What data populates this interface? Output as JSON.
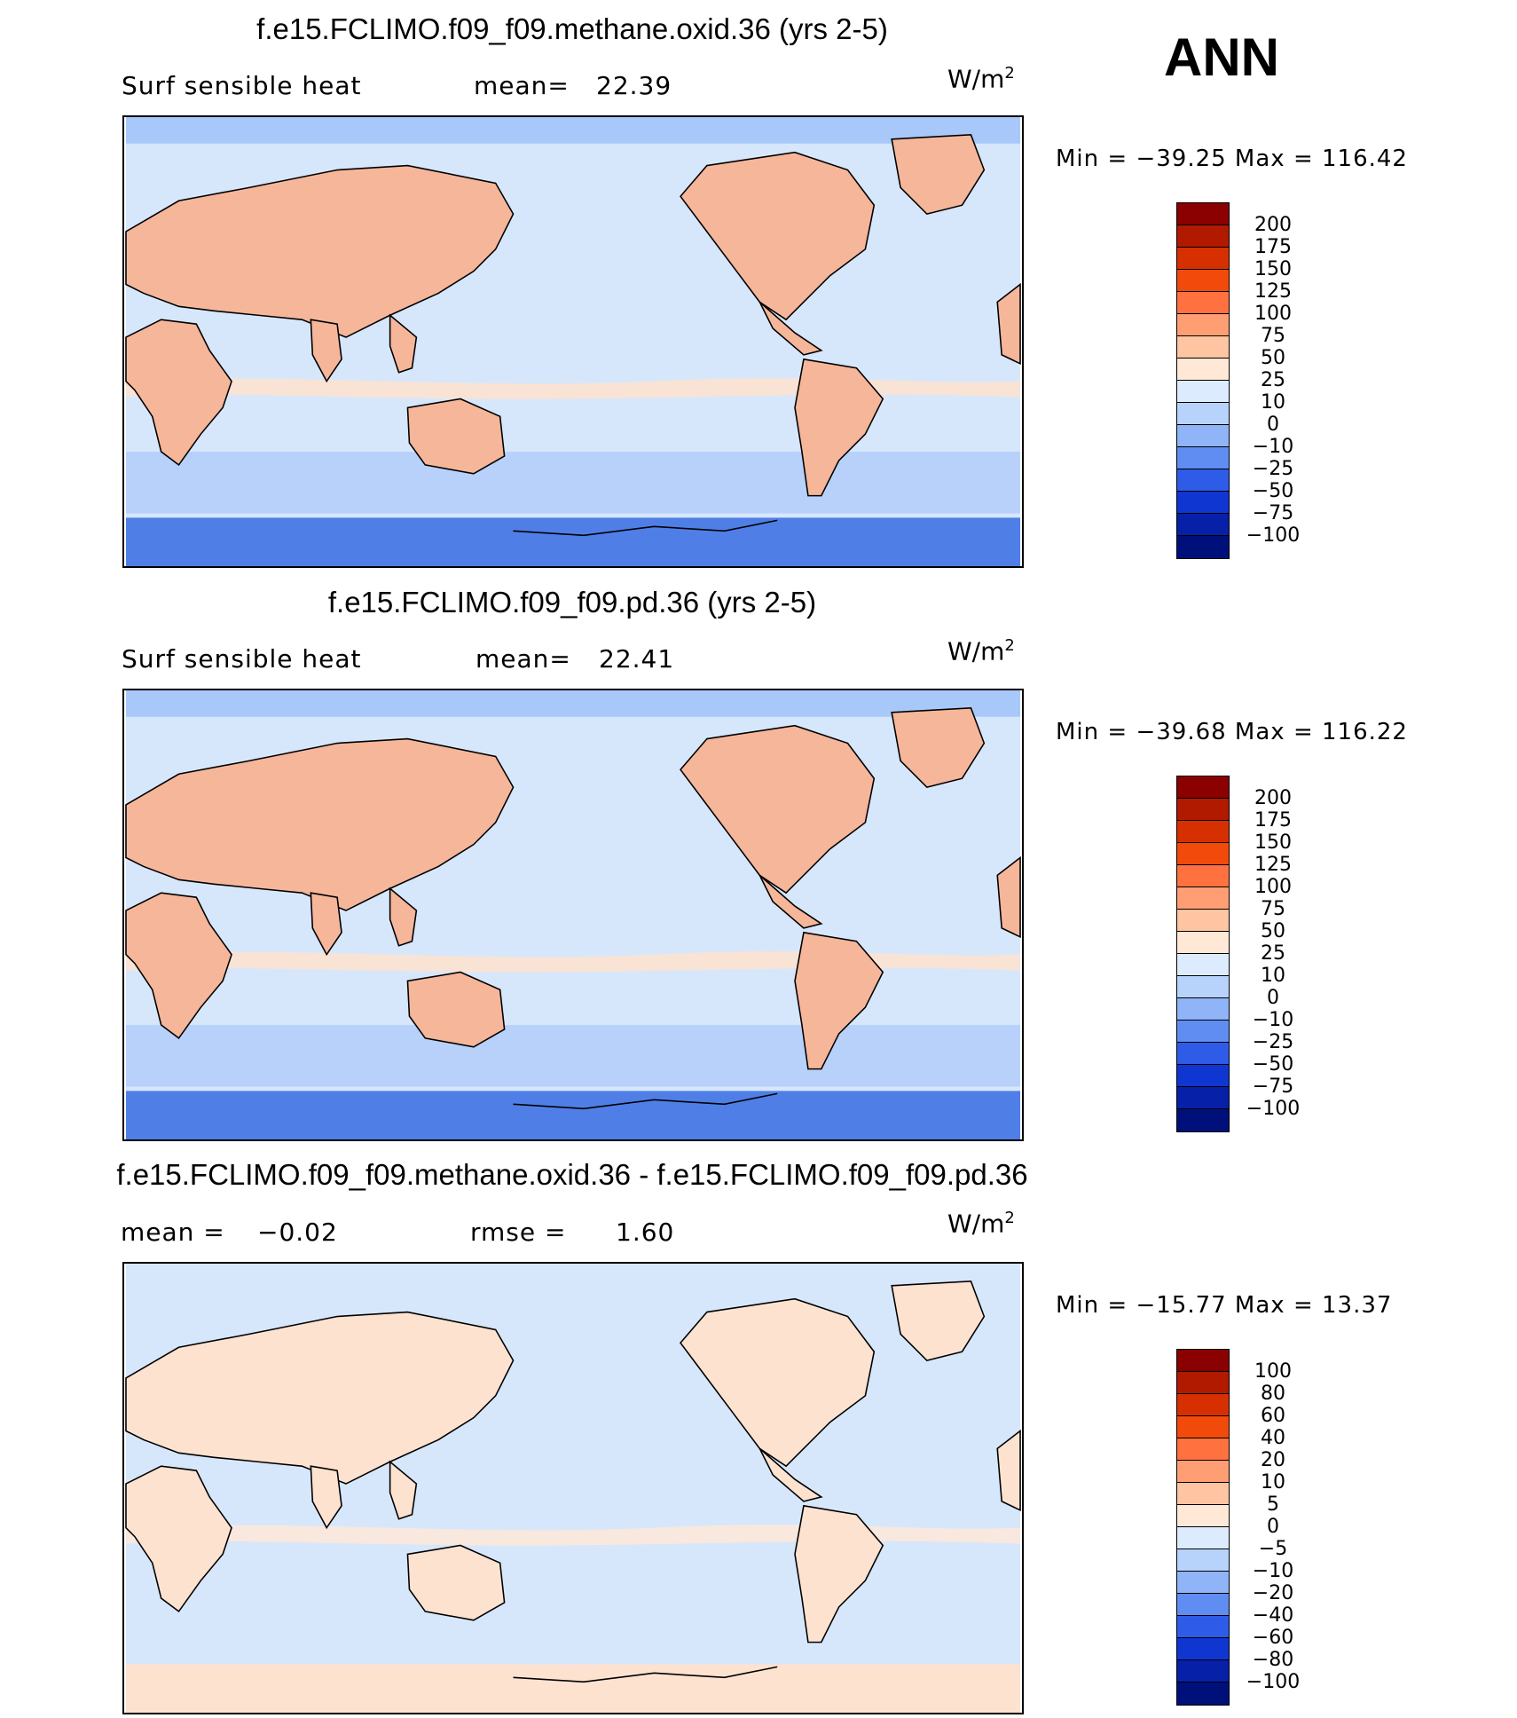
{
  "season": "ANN",
  "panels": [
    {
      "title": "f.e15.FCLIMO.f09_f09.methane.oxid.36 (yrs 2-5)",
      "variable": "Surf  sensible  heat",
      "stat1_label": "mean=",
      "stat1_value": "22.39",
      "stat2_label": "",
      "stat2_value": "",
      "units_base": "W/m",
      "units_exp": "2",
      "min_max": "Min  =  −39.25  Max  =  116.42",
      "colorbar_levels": [
        "200",
        "175",
        "150",
        "125",
        "100",
        "75",
        "50",
        "25",
        "10",
        "0",
        "−10",
        "−25",
        "−50",
        "−75",
        "−100"
      ],
      "colorbar_colors": [
        "#8b0000",
        "#b21a00",
        "#d73000",
        "#f24a0a",
        "#ff7240",
        "#ff9e72",
        "#ffc4a2",
        "#ffe8d6",
        "#dcebfd",
        "#b8d3fb",
        "#8fb4f8",
        "#5f8df2",
        "#2e5ce8",
        "#1036d2",
        "#0620a8",
        "#00107a"
      ],
      "map_colors": {
        "ocean": "#d6e7fc",
        "land_warm": "#f6b69a",
        "land_mild": "#fde2d0",
        "ocean_cool": "#a9c8fa",
        "polar": "#4f7fe6"
      }
    },
    {
      "title": "f.e15.FCLIMO.f09_f09.pd.36 (yrs 2-5)",
      "variable": "Surf  sensible  heat",
      "stat1_label": "mean=",
      "stat1_value": "22.41",
      "stat2_label": "",
      "stat2_value": "",
      "units_base": "W/m",
      "units_exp": "2",
      "min_max": "Min  =  −39.68  Max  =  116.22",
      "colorbar_levels": [
        "200",
        "175",
        "150",
        "125",
        "100",
        "75",
        "50",
        "25",
        "10",
        "0",
        "−10",
        "−25",
        "−50",
        "−75",
        "−100"
      ],
      "colorbar_colors": [
        "#8b0000",
        "#b21a00",
        "#d73000",
        "#f24a0a",
        "#ff7240",
        "#ff9e72",
        "#ffc4a2",
        "#ffe8d6",
        "#dcebfd",
        "#b8d3fb",
        "#8fb4f8",
        "#5f8df2",
        "#2e5ce8",
        "#1036d2",
        "#0620a8",
        "#00107a"
      ],
      "map_colors": {
        "ocean": "#d6e7fc",
        "land_warm": "#f6b69a",
        "land_mild": "#fde2d0",
        "ocean_cool": "#a9c8fa",
        "polar": "#4f7fe6"
      }
    },
    {
      "title": "f.e15.FCLIMO.f09_f09.methane.oxid.36 - f.e15.FCLIMO.f09_f09.pd.36",
      "variable": "",
      "stat1_label": "mean  =",
      "stat1_value": "−0.02",
      "stat2_label": "rmse  =",
      "stat2_value": "1.60",
      "units_base": "W/m",
      "units_exp": "2",
      "min_max": "Min  =  −15.77  Max  =   13.37",
      "colorbar_levels": [
        "100",
        "80",
        "60",
        "40",
        "20",
        "10",
        "5",
        "0",
        "−5",
        "−10",
        "−20",
        "−40",
        "−60",
        "−80",
        "−100"
      ],
      "colorbar_colors": [
        "#8b0000",
        "#b21a00",
        "#d73000",
        "#f24a0a",
        "#ff7240",
        "#ff9e72",
        "#ffc4a2",
        "#ffe8d6",
        "#dcebfd",
        "#b8d3fb",
        "#8fb4f8",
        "#5f8df2",
        "#2e5ce8",
        "#1036d2",
        "#0620a8",
        "#00107a"
      ],
      "map_colors": {
        "ocean": "#d6e7fc",
        "land_warm": "#fde2d0",
        "land_mild": "#fde8d9",
        "ocean_cool": "#d6e7fc",
        "polar": "#fde2d0"
      }
    }
  ]
}
